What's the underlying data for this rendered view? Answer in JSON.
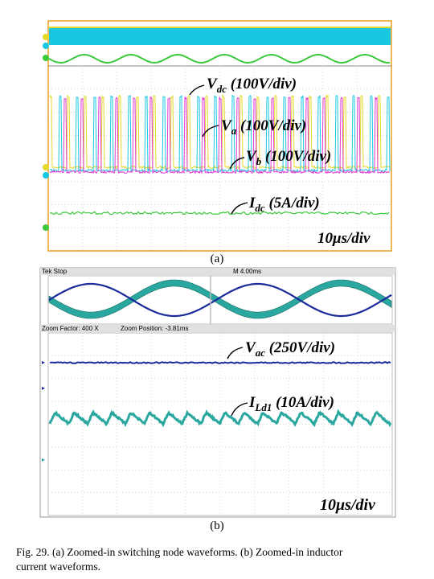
{
  "figure_a": {
    "label": "(a)",
    "timebase": "10μs/div",
    "annotations": [
      {
        "main": "V",
        "sub": "dc",
        "rest": " (100V/div)"
      },
      {
        "main": "V",
        "sub": "a",
        "rest": " (100V/div)"
      },
      {
        "main": "V",
        "sub": "b",
        "rest": " (100V/div)"
      },
      {
        "main": "I",
        "sub": "dc",
        "rest": " (5A/div)"
      }
    ]
  },
  "figure_b": {
    "label": "(b)",
    "header_left": "Tek Stop",
    "header_right": "M 4.00ms",
    "zoom_factor": "Zoom Factor: 400 X",
    "zoom_position": "Zoom Position: -3.81ms",
    "timebase": "10μs/div",
    "annotations": [
      {
        "main": "V",
        "sub": "ac",
        "rest": " (250V/div)"
      },
      {
        "main": "I",
        "sub": "Ld1",
        "rest": " (10A/div)"
      }
    ]
  },
  "caption": {
    "line1": "Fig. 29.   (a) Zoomed-in switching node waveforms. (b) Zoomed-in inductor",
    "line2": "current  waveforms."
  },
  "colors": {
    "yellow": "#e6d82a",
    "cyan": "#19c8e0",
    "magenta": "#e03ad0",
    "green": "#3cc83c",
    "navy": "#1a2a9a",
    "teal": "#2aa8a0",
    "border_a": "#e8a020"
  }
}
